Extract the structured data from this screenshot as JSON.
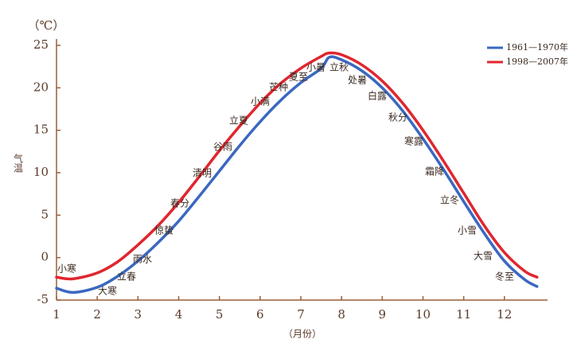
{
  "chart_data": {
    "type": "line",
    "y_unit": "（℃）",
    "y_label": "气温",
    "x_label": "（月份）",
    "xlim": [
      1,
      13
    ],
    "ylim": [
      -5,
      25
    ],
    "xticks": [
      1,
      2,
      3,
      4,
      5,
      6,
      7,
      8,
      9,
      10,
      11,
      12
    ],
    "yticks": [
      -5,
      0,
      5,
      10,
      15,
      20,
      25
    ],
    "legend": "upper right",
    "series": [
      {
        "name": "1961—1970年",
        "color": "#3a68c0",
        "x": [
          1,
          1.4,
          2,
          2.5,
          3,
          3.5,
          4,
          4.5,
          5,
          5.5,
          6,
          6.5,
          7,
          7.5,
          7.7,
          8,
          8.5,
          9,
          9.5,
          10,
          10.5,
          11,
          11.5,
          12,
          12.5,
          12.8
        ],
        "values": [
          -3.6,
          -4.1,
          -3.5,
          -2.2,
          -0.4,
          1.8,
          4.3,
          7.2,
          10.2,
          13.2,
          16.0,
          18.5,
          20.6,
          22.3,
          23.6,
          23.3,
          22.0,
          20.0,
          17.3,
          14.0,
          10.4,
          6.6,
          2.9,
          -0.4,
          -2.6,
          -3.4
        ]
      },
      {
        "name": "1998—2007年",
        "color": "#e0262e",
        "x": [
          1,
          1.4,
          2,
          2.5,
          3,
          3.5,
          4,
          4.5,
          5,
          5.5,
          6,
          6.5,
          7,
          7.5,
          7.7,
          8,
          8.5,
          9,
          9.5,
          10,
          10.5,
          11,
          11.5,
          12,
          12.5,
          12.8
        ],
        "values": [
          -2.3,
          -2.5,
          -1.8,
          -0.5,
          1.5,
          3.8,
          6.5,
          9.5,
          12.6,
          15.5,
          18.2,
          20.5,
          22.3,
          23.7,
          24.1,
          23.9,
          22.7,
          20.8,
          18.2,
          15.0,
          11.4,
          7.6,
          3.8,
          0.6,
          -1.6,
          -2.3
        ]
      }
    ],
    "annotations": [
      "小寒",
      "大寒",
      "立春",
      "雨水",
      "惊蛰",
      "春分",
      "清明",
      "谷雨",
      "立夏",
      "小满",
      "芒种",
      "夏至",
      "小暑",
      "立秋",
      "处暑",
      "白露",
      "秋分",
      "寒露",
      "霜降",
      "立冬",
      "小雪",
      "大雪",
      "冬至"
    ]
  }
}
